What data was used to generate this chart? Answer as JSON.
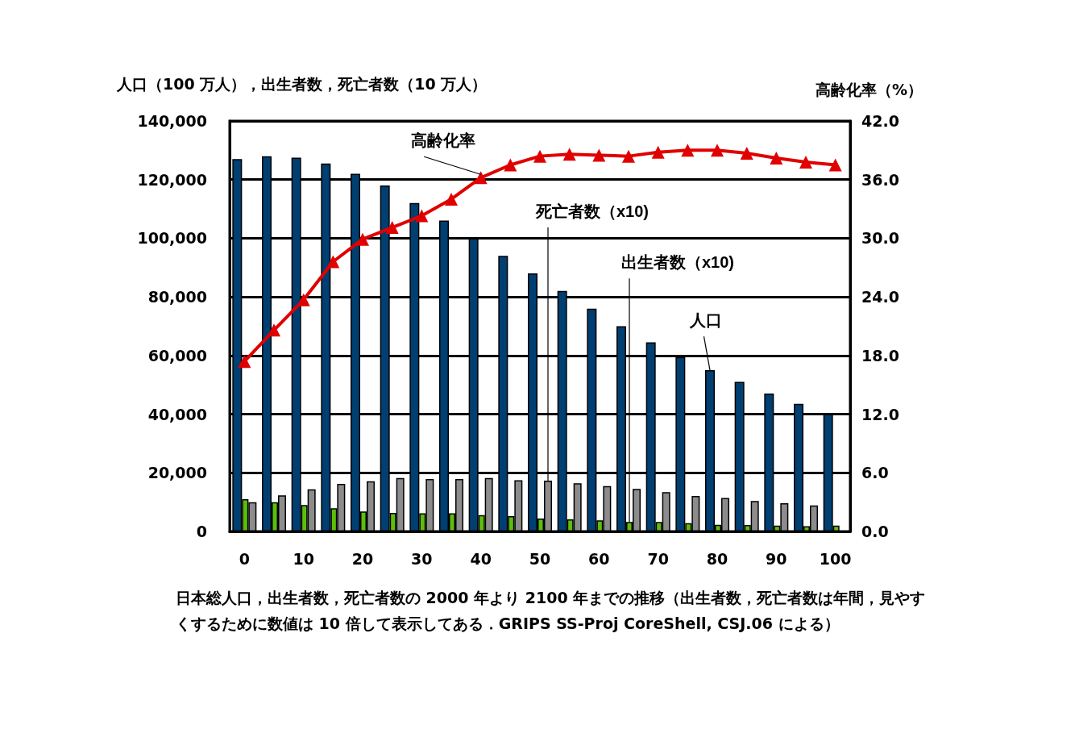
{
  "chart_data": {
    "type": "bar",
    "ylabel": "人口（100 万人），出生者数，死亡者数（10 万人）",
    "y2label": "高齢化率（%）",
    "categories": [
      "0",
      null,
      "10",
      null,
      "20",
      null,
      "30",
      null,
      "40",
      null,
      "50",
      null,
      "60",
      null,
      "70",
      null,
      "80",
      null,
      "90",
      null,
      "100"
    ],
    "series": [
      {
        "name": "人口",
        "color": "#003f72",
        "values": [
          127000,
          128000,
          127500,
          125500,
          122000,
          118000,
          112000,
          106000,
          100000,
          94000,
          88000,
          82000,
          76000,
          70000,
          64500,
          59500,
          55000,
          51000,
          47000,
          43500,
          40000
        ]
      },
      {
        "name": "出生者数（x10)",
        "color": "#5cbf0a",
        "values": [
          11000,
          10000,
          9000,
          7900,
          6800,
          6300,
          6200,
          6200,
          5600,
          5200,
          4400,
          4100,
          3800,
          3200,
          3200,
          2800,
          2300,
          2200,
          2000,
          1800,
          2000
        ]
      },
      {
        "name": "死亡者数（x10)",
        "color": "#8c8c8c",
        "values": [
          10000,
          12300,
          14400,
          16200,
          17100,
          18200,
          17900,
          17900,
          18200,
          17500,
          17300,
          16400,
          15500,
          14500,
          13400,
          12100,
          11400,
          10400,
          9600,
          8900,
          null
        ]
      },
      {
        "name": "高齢化率",
        "type": "line",
        "axis": "y2",
        "color": "#e00000",
        "marker": "triangle",
        "values": [
          17.4,
          20.6,
          23.7,
          27.6,
          29.9,
          31.1,
          32.3,
          34.0,
          36.2,
          37.5,
          38.4,
          38.6,
          38.5,
          38.4,
          38.8,
          39.0,
          39.0,
          38.7,
          38.2,
          37.8,
          37.5
        ]
      }
    ],
    "ylim": [
      0,
      140000
    ],
    "yticks": [
      0,
      {
        "value": 20000,
        "label": "20,000"
      },
      {
        "value": 40000,
        "label": "40,000"
      },
      {
        "value": 60000,
        "label": "60,000"
      },
      {
        "value": 80000,
        "label": "80,000"
      },
      {
        "value": 100000,
        "label": "100,000"
      },
      {
        "value": 120000,
        "label": "120,000"
      },
      {
        "value": 140000,
        "label": "140,000"
      }
    ],
    "y2lim": [
      0,
      42
    ],
    "y2ticks": [
      {
        "value": 0,
        "label": "0.0"
      },
      {
        "value": 6,
        "label": "6.0"
      },
      {
        "value": 12,
        "label": "12.0"
      },
      {
        "value": 18,
        "label": "18.0"
      },
      {
        "value": 24,
        "label": "24.0"
      },
      {
        "value": 30,
        "label": "30.0"
      },
      {
        "value": 36,
        "label": "36.0"
      },
      {
        "value": 42,
        "label": "42.0"
      }
    ],
    "grid": "y",
    "legend": false,
    "annotations": [
      "日本総人口，出生者数，死亡者数の 2000 年より 2100 年までの推移（出生者数，死亡者数は年間，見やすくするために数値は 10 倍して表示してある．GRIPS SS-Proj CoreShell, CSJ.06 による）"
    ]
  }
}
